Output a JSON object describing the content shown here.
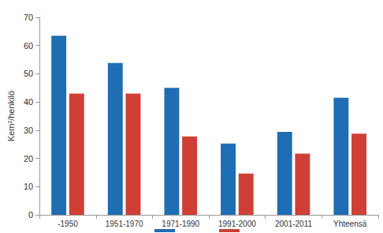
{
  "chart_data": {
    "type": "bar",
    "y_label": "Kem²/henkilö",
    "categories": [
      "-1950",
      "1951-1970",
      "1971-1990",
      "1991-2000",
      "2001-2011",
      "Yhteensä"
    ],
    "series": [
      {
        "color": "#1f6db3",
        "values": [
          63.5,
          53.8,
          45,
          25.3,
          29.4,
          41.5
        ]
      },
      {
        "color": "#cf3f36",
        "values": [
          43,
          43,
          27.8,
          14.6,
          21.7,
          28.8
        ]
      }
    ],
    "ylim": [
      0,
      70
    ],
    "yticks": [
      0,
      10,
      20,
      30,
      40,
      50,
      60,
      70
    ],
    "grid": false,
    "legend": "bottom"
  }
}
